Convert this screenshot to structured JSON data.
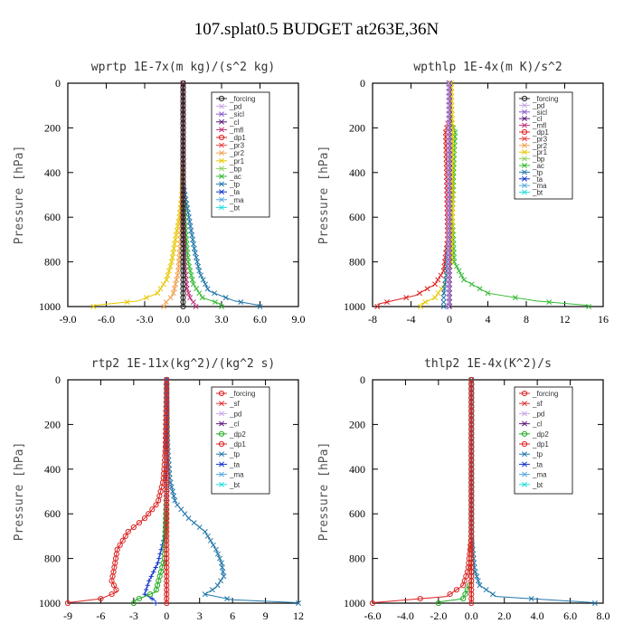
{
  "title": "107.splat0.5  BUDGET at263E,36N",
  "colors": {
    "_forcing": "#222222",
    "_pd": "#c9a6e6",
    "_sicl": "#8a5cc9",
    "_cl": "#5c1a7a",
    "_mfl": "#c0307a",
    "_dp1": "#dd2222",
    "_pr3": "#ee4040",
    "_pr2": "#f0a050",
    "_pr1": "#e8c800",
    "_bp": "#90d060",
    "_ac": "#33bb33",
    "_tp": "#2277aa",
    "_ta": "#1133cc",
    "_ma": "#55aadd",
    "_bt": "#22dddd",
    "_sf": "#dd3333",
    "_dp2": "#22aa22",
    "forcing_red": "#dd2222"
  },
  "chart_data": [
    {
      "id": "wprtp",
      "type": "line",
      "title": "wprtp   1E-7x(m kg)/(s^2 kg)",
      "ylabel": "Pressure [hPa]",
      "xlim": [
        -9,
        9
      ],
      "ylim": [
        1000,
        0
      ],
      "xticks": [
        "-9.0",
        "-6.0",
        "-3.0",
        "0.0",
        "3.0",
        "6.0",
        "9.0"
      ],
      "xtick_values": [
        -9,
        -6,
        -3,
        0,
        3,
        6,
        9
      ],
      "yticks": [
        "0",
        "200",
        "400",
        "600",
        "800",
        "1000"
      ],
      "ytick_values": [
        0,
        200,
        400,
        600,
        800,
        1000
      ],
      "legend": [
        "_forcing",
        "_pd",
        "_sicl",
        "_cl",
        "_mfl",
        "_dp1",
        "_pr3",
        "_pr2",
        "_pr1",
        "_bp",
        "_ac",
        "_tp",
        "_ta",
        "_ma",
        "_bt"
      ],
      "legend_position": "top-right",
      "series": [
        {
          "name": "_pr1",
          "colorKey": "_pr1",
          "marker": "x",
          "points": [
            [
              0,
              0
            ],
            [
              0,
              300
            ],
            [
              -0.1,
              500
            ],
            [
              -0.3,
              600
            ],
            [
              -0.6,
              700
            ],
            [
              -0.9,
              800
            ],
            [
              -1.3,
              880
            ],
            [
              -2.0,
              940
            ],
            [
              -3.5,
              975
            ],
            [
              -7.0,
              995
            ]
          ]
        },
        {
          "name": "_pr2",
          "colorKey": "_pr2",
          "marker": "x",
          "points": [
            [
              0,
              0
            ],
            [
              0,
              450
            ],
            [
              -0.2,
              700
            ],
            [
              -0.4,
              850
            ],
            [
              -0.8,
              950
            ],
            [
              -1.5,
              990
            ]
          ]
        },
        {
          "name": "_tp",
          "colorKey": "_tp",
          "marker": "x",
          "points": [
            [
              0,
              0
            ],
            [
              0,
              450
            ],
            [
              0.3,
              550
            ],
            [
              0.6,
              650
            ],
            [
              0.9,
              750
            ],
            [
              1.3,
              850
            ],
            [
              2.0,
              930
            ],
            [
              4.0,
              975
            ],
            [
              6.0,
              995
            ]
          ]
        },
        {
          "name": "_ac",
          "colorKey": "_ac",
          "marker": "x",
          "points": [
            [
              0,
              0
            ],
            [
              0,
              500
            ],
            [
              0.2,
              650
            ],
            [
              0.4,
              800
            ],
            [
              0.8,
              900
            ],
            [
              1.5,
              960
            ],
            [
              3.0,
              990
            ]
          ]
        },
        {
          "name": "_mfl",
          "colorKey": "_mfl",
          "marker": "x",
          "points": [
            [
              0,
              0
            ],
            [
              0,
              600
            ],
            [
              0.1,
              800
            ],
            [
              0.3,
              920
            ],
            [
              0.6,
              970
            ],
            [
              1.0,
              990
            ]
          ]
        },
        {
          "name": "_forcing",
          "colorKey": "_forcing",
          "marker": "o",
          "points": [
            [
              0,
              0
            ],
            [
              0,
              1000
            ]
          ]
        }
      ]
    },
    {
      "id": "wpthlp",
      "type": "line",
      "title": "wpthlp   1E-4x(m K)/s^2",
      "ylabel": "Pressure [hPa]",
      "xlim": [
        -8,
        16
      ],
      "ylim": [
        1000,
        0
      ],
      "xticks": [
        "-8",
        "-4",
        "0",
        "4",
        "8",
        "12",
        "16"
      ],
      "xtick_values": [
        -8,
        -4,
        0,
        4,
        8,
        12,
        16
      ],
      "yticks": [
        "0",
        "200",
        "400",
        "600",
        "800",
        "1000"
      ],
      "ytick_values": [
        0,
        200,
        400,
        600,
        800,
        1000
      ],
      "legend": [
        "_forcing",
        "_pd",
        "_sicl",
        "_cl",
        "_mfl",
        "_dp1",
        "_pr3",
        "_pr2",
        "_pr1",
        "_bp",
        "_ac",
        "_tp",
        "_ta",
        "_ma",
        "_bt"
      ],
      "legend_position": "top-right",
      "series": [
        {
          "name": "_ac",
          "colorKey": "_ac",
          "marker": "x",
          "points": [
            [
              0,
              0
            ],
            [
              0,
              150
            ],
            [
              0.6,
              220
            ],
            [
              0.5,
              300
            ],
            [
              0.3,
              600
            ],
            [
              0.5,
              800
            ],
            [
              1.5,
              880
            ],
            [
              4.0,
              940
            ],
            [
              9.0,
              975
            ],
            [
              14.5,
              995
            ]
          ]
        },
        {
          "name": "_dp1",
          "colorKey": "_dp1",
          "marker": "x",
          "points": [
            [
              0,
              0
            ],
            [
              0,
              150
            ],
            [
              -0.4,
              220
            ],
            [
              -0.3,
              400
            ],
            [
              -0.2,
              700
            ],
            [
              -0.6,
              840
            ],
            [
              -1.5,
              900
            ],
            [
              -3.5,
              950
            ],
            [
              -7.5,
              990
            ]
          ]
        },
        {
          "name": "_pr1",
          "colorKey": "_pr1",
          "marker": "x",
          "points": [
            [
              0.2,
              0
            ],
            [
              0.3,
              200
            ],
            [
              0.3,
              600
            ],
            [
              0.2,
              800
            ],
            [
              -0.5,
              900
            ],
            [
              -1.5,
              960
            ],
            [
              -3.0,
              990
            ]
          ]
        },
        {
          "name": "_tp",
          "colorKey": "_tp",
          "marker": "x",
          "points": [
            [
              0,
              0
            ],
            [
              0,
              400
            ],
            [
              -0.1,
              700
            ],
            [
              -0.3,
              850
            ],
            [
              -0.6,
              950
            ]
          ]
        },
        {
          "name": "_cl",
          "colorKey": "_cl",
          "marker": "x",
          "points": [
            [
              0,
              0
            ],
            [
              0,
              1000
            ]
          ]
        },
        {
          "name": "_pd",
          "colorKey": "_pd",
          "marker": "x",
          "points": [
            [
              -0.1,
              0
            ],
            [
              -0.1,
              1000
            ]
          ]
        }
      ]
    },
    {
      "id": "rtp2",
      "type": "line",
      "title": "rtp2   1E-11x(kg^2)/(kg^2 s)",
      "ylabel": "Pressure [hPa]",
      "xlim": [
        -9,
        12
      ],
      "ylim": [
        1000,
        0
      ],
      "xticks": [
        "-9",
        "-6",
        "-3",
        "0",
        "3",
        "6",
        "9",
        "12"
      ],
      "xtick_values": [
        -9,
        -6,
        -3,
        0,
        3,
        6,
        9,
        12
      ],
      "yticks": [
        "0",
        "200",
        "400",
        "600",
        "800",
        "1000"
      ],
      "ytick_values": [
        0,
        200,
        400,
        600,
        800,
        1000
      ],
      "legend": [
        "_forcing",
        "_sf",
        "_pd",
        "_cl",
        "_dp2",
        "_dp1",
        "_tp",
        "_ta",
        "_ma",
        "_bt"
      ],
      "legend_position": "top-right",
      "series": [
        {
          "name": "_dp1",
          "colorKey": "_dp1",
          "marker": "o",
          "points": [
            [
              0,
              0
            ],
            [
              -0.1,
              300
            ],
            [
              -0.3,
              450
            ],
            [
              -0.8,
              550
            ],
            [
              -2.0,
              620
            ],
            [
              -3.5,
              680
            ],
            [
              -4.5,
              760
            ],
            [
              -4.8,
              850
            ],
            [
              -5.0,
              900
            ],
            [
              -4.5,
              950
            ],
            [
              -6.0,
              980
            ],
            [
              -9,
              998
            ]
          ]
        },
        {
          "name": "_tp",
          "colorKey": "_tp",
          "marker": "x",
          "points": [
            [
              0,
              0
            ],
            [
              0.1,
              300
            ],
            [
              0.3,
              450
            ],
            [
              0.8,
              550
            ],
            [
              2.0,
              620
            ],
            [
              3.5,
              680
            ],
            [
              4.5,
              760
            ],
            [
              5.0,
              820
            ],
            [
              5.2,
              880
            ],
            [
              4.5,
              930
            ],
            [
              3.5,
              960
            ],
            [
              6.0,
              985
            ],
            [
              12,
              998
            ]
          ]
        },
        {
          "name": "_ta",
          "colorKey": "_ta",
          "marker": "+",
          "points": [
            [
              0,
              0
            ],
            [
              0,
              600
            ],
            [
              -0.2,
              700
            ],
            [
              -0.8,
              820
            ],
            [
              -1.6,
              900
            ],
            [
              -2.0,
              960
            ],
            [
              -1.0,
              990
            ]
          ]
        },
        {
          "name": "_dp2",
          "colorKey": "_dp2",
          "marker": "o",
          "points": [
            [
              0,
              0
            ],
            [
              0,
              500
            ],
            [
              -0.2,
              800
            ],
            [
              -1.0,
              950
            ],
            [
              -3.0,
              990
            ]
          ]
        },
        {
          "name": "_forcing",
          "colorKey": "forcing_red",
          "marker": "o",
          "points": [
            [
              0,
              0
            ],
            [
              0,
              1000
            ]
          ]
        }
      ]
    },
    {
      "id": "thlp2",
      "type": "line",
      "title": "thlp2   1E-4x(K^2)/s",
      "ylabel": "Pressure [hPa]",
      "xlim": [
        -6,
        8
      ],
      "ylim": [
        1000,
        0
      ],
      "xticks": [
        "-6.0",
        "-4.0",
        "-2.0",
        "0.0",
        "2.0",
        "4.0",
        "6.0",
        "8.0"
      ],
      "xtick_values": [
        -6,
        -4,
        -2,
        0,
        2,
        4,
        6,
        8
      ],
      "yticks": [
        "0",
        "200",
        "400",
        "600",
        "800",
        "1000"
      ],
      "ytick_values": [
        0,
        200,
        400,
        600,
        800,
        1000
      ],
      "legend": [
        "_forcing",
        "_sf",
        "_pd",
        "_cl",
        "_dp2",
        "_dp1",
        "_tp",
        "_ta",
        "_ma",
        "_bt"
      ],
      "legend_position": "top-right",
      "series": [
        {
          "name": "_dp1",
          "colorKey": "_dp1",
          "marker": "o",
          "points": [
            [
              0,
              0
            ],
            [
              0,
              700
            ],
            [
              -0.2,
              850
            ],
            [
              -0.5,
              920
            ],
            [
              -1.5,
              970
            ],
            [
              -6.0,
              998
            ]
          ]
        },
        {
          "name": "_tp",
          "colorKey": "_tp",
          "marker": "x",
          "points": [
            [
              0,
              0
            ],
            [
              0,
              700
            ],
            [
              0.2,
              850
            ],
            [
              0.5,
              920
            ],
            [
              1.5,
              970
            ],
            [
              7.5,
              998
            ]
          ]
        },
        {
          "name": "_dp2",
          "colorKey": "_dp2",
          "marker": "o",
          "points": [
            [
              0,
              0
            ],
            [
              0,
              900
            ],
            [
              -0.5,
              980
            ],
            [
              -2.0,
              995
            ]
          ]
        },
        {
          "name": "_forcing",
          "colorKey": "forcing_red",
          "marker": "o",
          "points": [
            [
              0,
              0
            ],
            [
              0,
              1000
            ]
          ]
        }
      ]
    }
  ]
}
